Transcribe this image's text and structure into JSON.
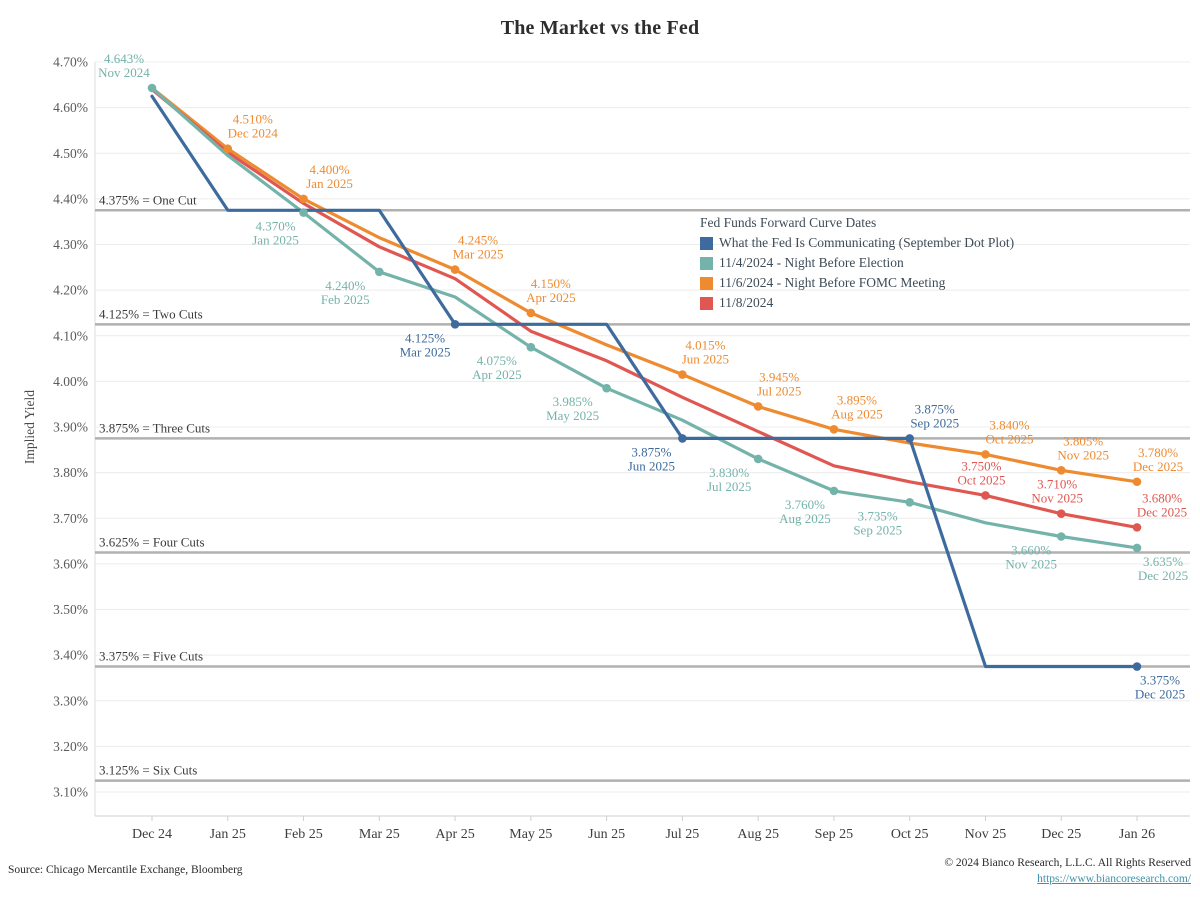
{
  "title": "The Market vs the Fed",
  "footer": {
    "source": "Source: Chicago Mercantile Exchange, Bloomberg",
    "copyright": "© 2024 Bianco Research, L.L.C. All Rights Reserved",
    "link": "https://www.biancoresearch.com/"
  },
  "colors": {
    "grid": "#ececec",
    "axis_line": "#cfcfcf",
    "left_axis_line": "#dcdcdc",
    "reference_line": "#b3b1ae",
    "reference_label": "#3a3a3a",
    "y_tick_text": "#5a5a5a",
    "x_tick_text": "#3d3d3d",
    "title_text": "#2d2d2d",
    "legend_text": "#3e4c58",
    "link": "#3a93ac"
  },
  "chart_data": {
    "type": "line",
    "title": "The Market vs the Fed",
    "xlabel": "",
    "ylabel": "Implied Yield",
    "ylim": [
      3.05,
      4.72
    ],
    "grid": true,
    "legend_position": "upper-right-inside",
    "legend_title": "Fed Funds Forward Curve Dates",
    "y_ticks": [
      4.7,
      4.6,
      4.5,
      4.4,
      4.3,
      4.2,
      4.1,
      4.0,
      3.9,
      3.8,
      3.7,
      3.6,
      3.5,
      3.4,
      3.3,
      3.2,
      3.1
    ],
    "x_categories": [
      "Dec 24",
      "Jan 25",
      "Feb 25",
      "Mar 25",
      "Apr 25",
      "May 25",
      "Jun 25",
      "Jul 25",
      "Aug 25",
      "Sep 25",
      "Oct 25",
      "Nov 25",
      "Dec 25",
      "Jan 26"
    ],
    "reference_lines": [
      {
        "value": 4.375,
        "label": "4.375% = One Cut"
      },
      {
        "value": 4.125,
        "label": "4.125% = Two Cuts"
      },
      {
        "value": 3.875,
        "label": "3.875% = Three Cuts"
      },
      {
        "value": 3.625,
        "label": "3.625% = Four Cuts"
      },
      {
        "value": 3.375,
        "label": "3.375% = Five Cuts"
      },
      {
        "value": 3.125,
        "label": "3.125% = Six Cuts"
      }
    ],
    "series": [
      {
        "id": "nov-6-fomc",
        "name": "11/6/2024 - Night Before FOMC Meeting",
        "color": "#ee8b31",
        "values": [
          4.643,
          4.51,
          4.4,
          4.315,
          4.245,
          4.15,
          4.08,
          4.015,
          3.945,
          3.895,
          3.865,
          3.84,
          3.805,
          3.78
        ],
        "point_labels": [
          {
            "idx": 1,
            "value_text": "4.510%",
            "date_text": "Dec 2024",
            "side": "above",
            "dx": 25
          },
          {
            "idx": 2,
            "value_text": "4.400%",
            "date_text": "Jan 2025",
            "side": "above",
            "dx": 26
          },
          {
            "idx": 4,
            "value_text": "4.245%",
            "date_text": "Mar 2025",
            "side": "above",
            "dx": 23
          },
          {
            "idx": 5,
            "value_text": "4.150%",
            "date_text": "Apr 2025",
            "side": "above",
            "dx": 20
          },
          {
            "idx": 7,
            "value_text": "4.015%",
            "date_text": "Jun 2025",
            "side": "above",
            "dx": 23
          },
          {
            "idx": 8,
            "value_text": "3.945%",
            "date_text": "Jul 2025",
            "side": "above",
            "dx": 21
          },
          {
            "idx": 9,
            "value_text": "3.895%",
            "date_text": "Aug 2025",
            "side": "above",
            "dx": 23
          },
          {
            "idx": 11,
            "value_text": "3.840%",
            "date_text": "Oct 2025",
            "side": "above",
            "dx": 24
          },
          {
            "idx": 12,
            "value_text": "3.805%",
            "date_text": "Nov 2025",
            "side": "above",
            "dx": 22
          },
          {
            "idx": 13,
            "value_text": "3.780%",
            "date_text": "Dec 2025",
            "side": "above",
            "dx": 21
          }
        ]
      },
      {
        "id": "nov-8",
        "name": "11/8/2024",
        "color": "#e05752",
        "values": [
          4.64,
          4.502,
          4.39,
          4.295,
          4.225,
          4.11,
          4.045,
          3.965,
          3.89,
          3.815,
          3.78,
          3.75,
          3.71,
          3.68
        ],
        "point_labels": [
          {
            "idx": 11,
            "value_text": "3.750%",
            "date_text": "Oct 2025",
            "side": "above",
            "dx": -4
          },
          {
            "idx": 12,
            "value_text": "3.710%",
            "date_text": "Nov 2025",
            "side": "above",
            "dx": -4
          },
          {
            "idx": 13,
            "value_text": "3.680%",
            "date_text": "Dec 2025",
            "side": "above",
            "dx": 25
          }
        ]
      },
      {
        "id": "nov-4-election",
        "name": "11/4/2024 - Night Before Election",
        "color": "#74b3aa",
        "values": [
          4.643,
          4.495,
          4.37,
          4.24,
          4.185,
          4.075,
          3.985,
          3.915,
          3.83,
          3.76,
          3.735,
          3.69,
          3.66,
          3.635
        ],
        "point_labels": [
          {
            "idx": 0,
            "value_text": "4.643%",
            "date_text": "Nov 2024",
            "side": "above",
            "dx": -28
          },
          {
            "idx": 2,
            "value_text": "4.370%",
            "date_text": "Jan 2025",
            "side": "below",
            "dx": -28
          },
          {
            "idx": 3,
            "value_text": "4.240%",
            "date_text": "Feb 2025",
            "side": "below",
            "dx": -34
          },
          {
            "idx": 5,
            "value_text": "4.075%",
            "date_text": "Apr 2025",
            "side": "below",
            "dx": -34
          },
          {
            "idx": 6,
            "value_text": "3.985%",
            "date_text": "May 2025",
            "side": "below",
            "dx": -34
          },
          {
            "idx": 8,
            "value_text": "3.830%",
            "date_text": "Jul 2025",
            "side": "below",
            "dx": -29
          },
          {
            "idx": 9,
            "value_text": "3.760%",
            "date_text": "Aug 2025",
            "side": "below",
            "dx": -29
          },
          {
            "idx": 10,
            "value_text": "3.735%",
            "date_text": "Sep 2025",
            "side": "below",
            "dx": -32
          },
          {
            "idx": 12,
            "value_text": "3.660%",
            "date_text": "Nov 2025",
            "side": "below",
            "dx": -30
          },
          {
            "idx": 13,
            "value_text": "3.635%",
            "date_text": "Dec 2025",
            "side": "below",
            "dx": 26
          }
        ]
      },
      {
        "id": "fed-dot-plot",
        "name": "What the Fed Is Communicating (September Dot Plot)",
        "color": "#3e6b9e",
        "values": [
          4.625,
          4.375,
          4.375,
          4.375,
          4.125,
          4.125,
          4.125,
          3.875,
          3.875,
          3.875,
          3.875,
          3.375,
          3.375,
          3.375
        ],
        "point_labels": [
          {
            "idx": 4,
            "value_text": "4.125%",
            "date_text": "Mar 2025",
            "side": "below",
            "dx": -30
          },
          {
            "idx": 7,
            "value_text": "3.875%",
            "date_text": "Jun 2025",
            "side": "below",
            "dx": -31
          },
          {
            "idx": 10,
            "value_text": "3.875%",
            "date_text": "Sep 2025",
            "side": "above",
            "dx": 25
          },
          {
            "idx": 13,
            "value_text": "3.375%",
            "date_text": "Dec 2025",
            "side": "below",
            "dx": 23
          }
        ]
      }
    ],
    "legend_order": [
      "fed-dot-plot",
      "nov-4-election",
      "nov-6-fomc",
      "nov-8"
    ]
  }
}
